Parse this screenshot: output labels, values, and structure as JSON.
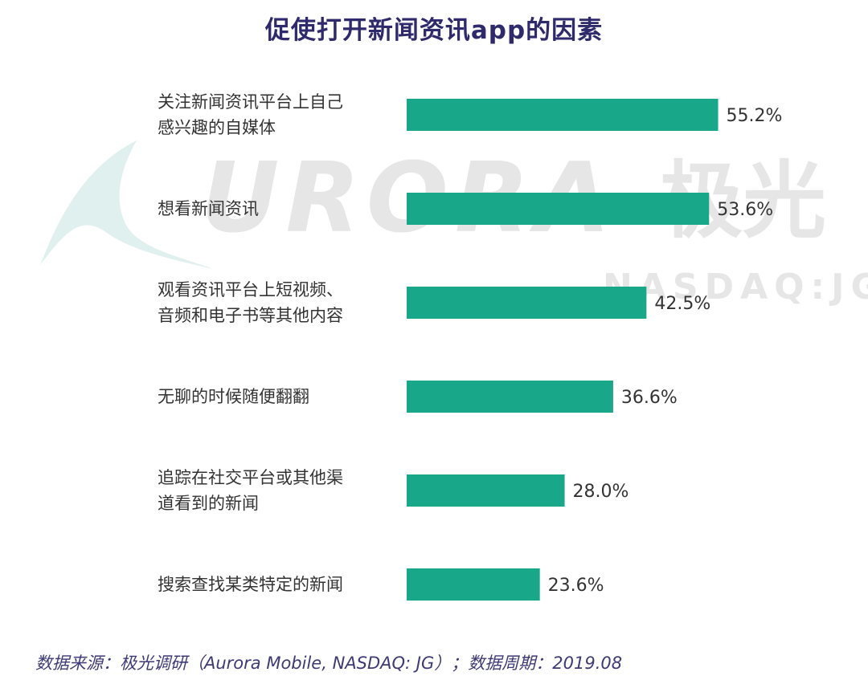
{
  "chart_data": {
    "type": "bar",
    "orientation": "horizontal",
    "title": "促使打开新闻资讯app的因素",
    "categories": [
      "关注新闻资讯平台上自己\n感兴趣的自媒体",
      "想看新闻资讯",
      "观看资讯平台上短视频、\n音频和电子书等其他内容",
      "无聊的时候随便翻翻",
      "追踪在社交平台或其他渠\n道看到的新闻",
      "搜索查找某类特定的新闻"
    ],
    "values": [
      55.2,
      53.6,
      42.5,
      36.6,
      28.0,
      23.6
    ],
    "value_labels": [
      "55.2%",
      "53.6%",
      "42.5%",
      "36.6%",
      "28.0%",
      "23.6%"
    ],
    "xlim": [
      0,
      60
    ],
    "bar_color": "#18a889",
    "grid": false
  },
  "watermark": {
    "word": "URORA",
    "cn": "极光",
    "sub": "NASDAQ:JG"
  },
  "footer": {
    "source": "数据来源：极光调研（Aurora Mobile, NASDAQ: JG）；数据周期：2019.08"
  },
  "colors": {
    "title": "#2f2a6b",
    "bar": "#18a889",
    "watermark": "#e6e6e6",
    "footer": "#3d3a75"
  }
}
